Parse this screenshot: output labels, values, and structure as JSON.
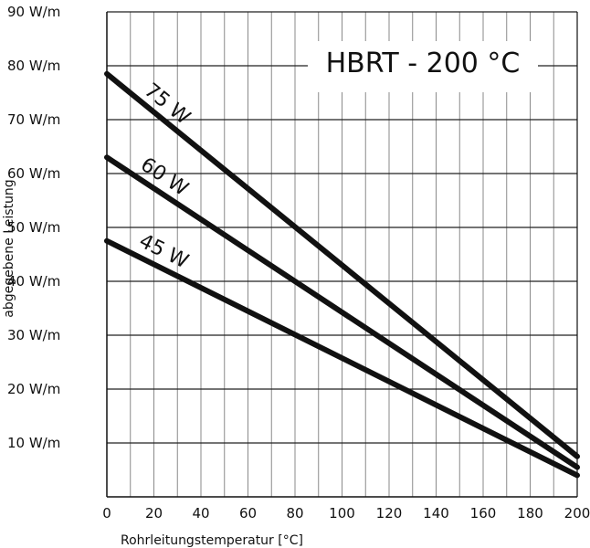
{
  "chart_data": {
    "type": "line",
    "title": "HBRT  -  200  °C",
    "xlabel": "Rohrleitungstemperatur  [°C]",
    "ylabel": "abgegebene  Leistung",
    "xlim": [
      0,
      200
    ],
    "ylim": [
      0,
      90
    ],
    "x_ticks": [
      "0",
      "20",
      "40",
      "60",
      "80",
      "100",
      "120",
      "140",
      "160",
      "180",
      "200"
    ],
    "y_ticks": [
      {
        "value": 10,
        "label": "10  W/m"
      },
      {
        "value": 20,
        "label": "20  W/m"
      },
      {
        "value": 30,
        "label": "30  W/m"
      },
      {
        "value": 40,
        "label": "40  W/m"
      },
      {
        "value": 50,
        "label": "50  W/m"
      },
      {
        "value": 60,
        "label": "60  W/m"
      },
      {
        "value": 70,
        "label": "70  W/m"
      },
      {
        "value": 80,
        "label": "80  W/m"
      },
      {
        "value": 90,
        "label": "90  W/m"
      }
    ],
    "grid": true,
    "series": [
      {
        "name": "75 W",
        "x": [
          0,
          200
        ],
        "y": [
          78.5,
          7.5
        ]
      },
      {
        "name": "60 W",
        "x": [
          0,
          200
        ],
        "y": [
          63,
          5.5
        ]
      },
      {
        "name": "45 W",
        "x": [
          0,
          200
        ],
        "y": [
          47.5,
          4
        ]
      }
    ]
  }
}
